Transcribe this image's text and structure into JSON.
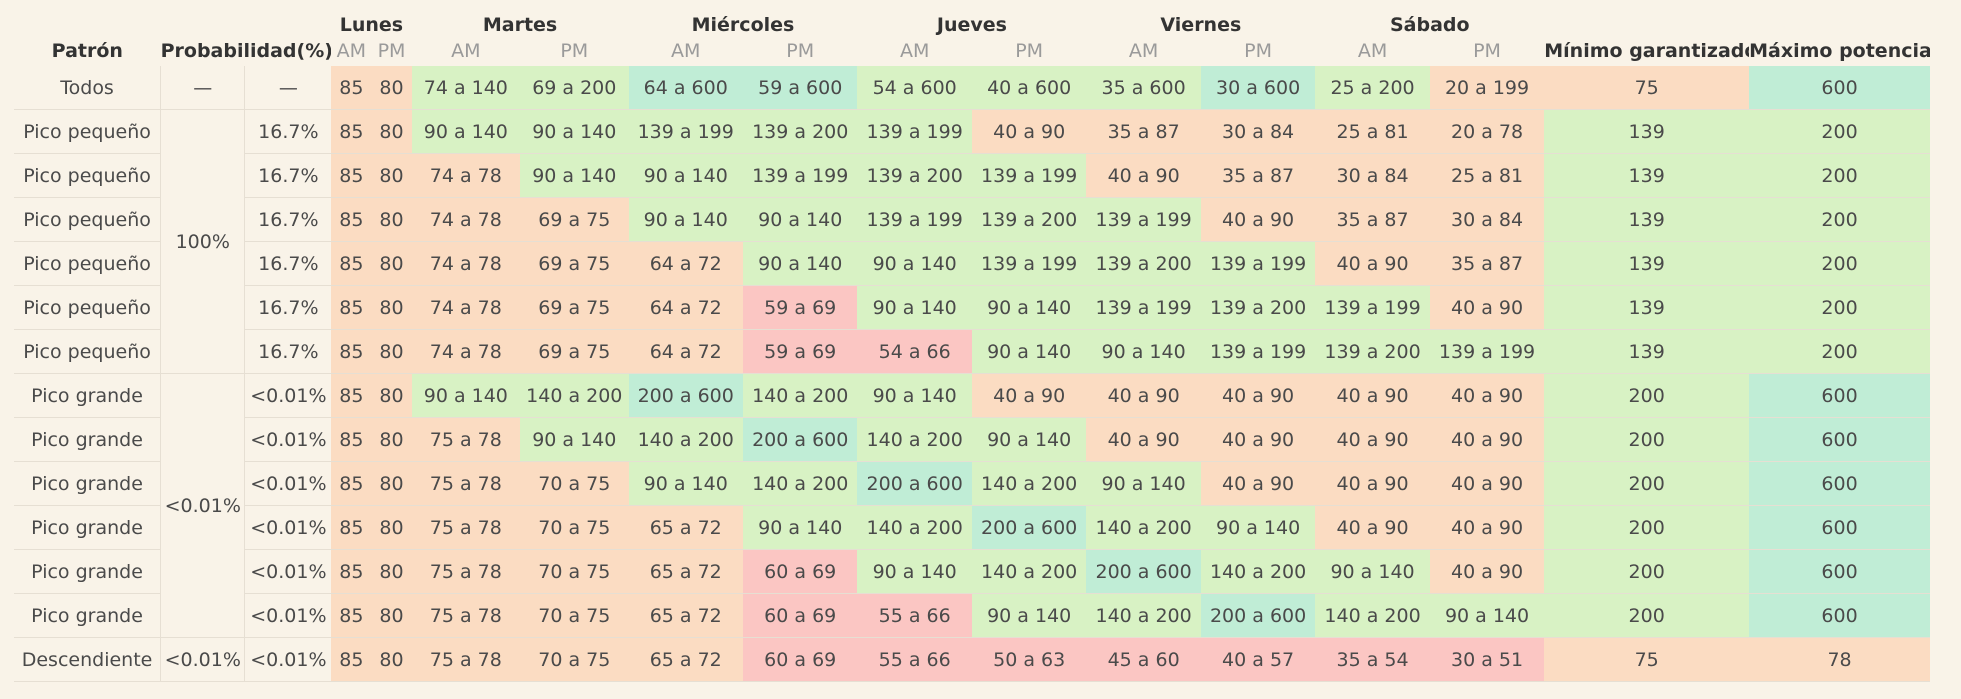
{
  "headers": {
    "pattern": "Patrón",
    "probability": "Probabilidad(%)",
    "days": [
      "Lunes",
      "Martes",
      "Miércoles",
      "Jueves",
      "Viernes",
      "Sábado"
    ],
    "am": "AM",
    "pm": "PM",
    "min_guaranteed": "Mínimo garantizado",
    "max_potential": "Máximo potencial"
  },
  "colors": {
    "o": "#fbdcc2",
    "g": "#d8f2c4",
    "t": "#c0edd6",
    "r": "#fbc6c3",
    "background": "#f9f3e8"
  },
  "rows": [
    {
      "pattern": "Todos",
      "prob": "—",
      "cells": [
        "85",
        "80",
        "74 a 140",
        "69 a 200",
        "64 a 600",
        "59 a 600",
        "54 a 600",
        "40 a 600",
        "35 a 600",
        "30 a 600",
        "25 a 200",
        "20 a 199",
        "75",
        "600"
      ],
      "colors": [
        "o",
        "o",
        "g",
        "g",
        "t",
        "t",
        "g",
        "g",
        "g",
        "t",
        "g",
        "o",
        "o",
        "t"
      ]
    },
    {
      "pattern": "Pico pequeño",
      "prob": "16.7%",
      "cells": [
        "85",
        "80",
        "90 a 140",
        "90 a 140",
        "139 a 199",
        "139 a 200",
        "139 a 199",
        "40 a 90",
        "35 a 87",
        "30 a 84",
        "25 a 81",
        "20 a 78",
        "139",
        "200"
      ],
      "colors": [
        "o",
        "o",
        "g",
        "g",
        "g",
        "g",
        "g",
        "o",
        "o",
        "o",
        "o",
        "o",
        "g",
        "g"
      ]
    },
    {
      "pattern": "Pico pequeño",
      "prob": "16.7%",
      "cells": [
        "85",
        "80",
        "74 a 78",
        "90 a 140",
        "90 a 140",
        "139 a 199",
        "139 a 200",
        "139 a 199",
        "40 a 90",
        "35 a 87",
        "30 a 84",
        "25 a 81",
        "139",
        "200"
      ],
      "colors": [
        "o",
        "o",
        "o",
        "g",
        "g",
        "g",
        "g",
        "g",
        "o",
        "o",
        "o",
        "o",
        "g",
        "g"
      ]
    },
    {
      "pattern": "Pico pequeño",
      "prob": "16.7%",
      "cells": [
        "85",
        "80",
        "74 a 78",
        "69 a 75",
        "90 a 140",
        "90 a 140",
        "139 a 199",
        "139 a 200",
        "139 a 199",
        "40 a 90",
        "35 a 87",
        "30 a 84",
        "139",
        "200"
      ],
      "colors": [
        "o",
        "o",
        "o",
        "o",
        "g",
        "g",
        "g",
        "g",
        "g",
        "o",
        "o",
        "o",
        "g",
        "g"
      ]
    },
    {
      "pattern": "Pico pequeño",
      "prob": "16.7%",
      "cells": [
        "85",
        "80",
        "74 a 78",
        "69 a 75",
        "64 a 72",
        "90 a 140",
        "90 a 140",
        "139 a 199",
        "139 a 200",
        "139 a 199",
        "40 a 90",
        "35 a 87",
        "139",
        "200"
      ],
      "colors": [
        "o",
        "o",
        "o",
        "o",
        "o",
        "g",
        "g",
        "g",
        "g",
        "g",
        "o",
        "o",
        "g",
        "g"
      ]
    },
    {
      "pattern": "Pico pequeño",
      "prob": "16.7%",
      "cells": [
        "85",
        "80",
        "74 a 78",
        "69 a 75",
        "64 a 72",
        "59 a 69",
        "90 a 140",
        "90 a 140",
        "139 a 199",
        "139 a 200",
        "139 a 199",
        "40 a 90",
        "139",
        "200"
      ],
      "colors": [
        "o",
        "o",
        "o",
        "o",
        "o",
        "r",
        "g",
        "g",
        "g",
        "g",
        "g",
        "o",
        "g",
        "g"
      ]
    },
    {
      "pattern": "Pico pequeño",
      "prob": "16.7%",
      "cells": [
        "85",
        "80",
        "74 a 78",
        "69 a 75",
        "64 a 72",
        "59 a 69",
        "54 a 66",
        "90 a 140",
        "90 a 140",
        "139 a 199",
        "139 a 200",
        "139 a 199",
        "139",
        "200"
      ],
      "colors": [
        "o",
        "o",
        "o",
        "o",
        "o",
        "r",
        "r",
        "g",
        "g",
        "g",
        "g",
        "g",
        "g",
        "g"
      ]
    },
    {
      "pattern": "Pico grande",
      "prob": "<0.01%",
      "cells": [
        "85",
        "80",
        "90 a 140",
        "140 a 200",
        "200 a 600",
        "140 a 200",
        "90 a 140",
        "40 a 90",
        "40 a 90",
        "40 a 90",
        "40 a 90",
        "40 a 90",
        "200",
        "600"
      ],
      "colors": [
        "o",
        "o",
        "g",
        "g",
        "t",
        "g",
        "g",
        "o",
        "o",
        "o",
        "o",
        "o",
        "g",
        "t"
      ]
    },
    {
      "pattern": "Pico grande",
      "prob": "<0.01%",
      "cells": [
        "85",
        "80",
        "75 a 78",
        "90 a 140",
        "140 a 200",
        "200 a 600",
        "140 a 200",
        "90 a 140",
        "40 a 90",
        "40 a 90",
        "40 a 90",
        "40 a 90",
        "200",
        "600"
      ],
      "colors": [
        "o",
        "o",
        "o",
        "g",
        "g",
        "t",
        "g",
        "g",
        "o",
        "o",
        "o",
        "o",
        "g",
        "t"
      ]
    },
    {
      "pattern": "Pico grande",
      "prob": "<0.01%",
      "cells": [
        "85",
        "80",
        "75 a 78",
        "70 a 75",
        "90 a 140",
        "140 a 200",
        "200 a 600",
        "140 a 200",
        "90 a 140",
        "40 a 90",
        "40 a 90",
        "40 a 90",
        "200",
        "600"
      ],
      "colors": [
        "o",
        "o",
        "o",
        "o",
        "g",
        "g",
        "t",
        "g",
        "g",
        "o",
        "o",
        "o",
        "g",
        "t"
      ]
    },
    {
      "pattern": "Pico grande",
      "prob": "<0.01%",
      "cells": [
        "85",
        "80",
        "75 a 78",
        "70 a 75",
        "65 a 72",
        "90 a 140",
        "140 a 200",
        "200 a 600",
        "140 a 200",
        "90 a 140",
        "40 a 90",
        "40 a 90",
        "200",
        "600"
      ],
      "colors": [
        "o",
        "o",
        "o",
        "o",
        "o",
        "g",
        "g",
        "t",
        "g",
        "g",
        "o",
        "o",
        "g",
        "t"
      ]
    },
    {
      "pattern": "Pico grande",
      "prob": "<0.01%",
      "cells": [
        "85",
        "80",
        "75 a 78",
        "70 a 75",
        "65 a 72",
        "60 a 69",
        "90 a 140",
        "140 a 200",
        "200 a 600",
        "140 a 200",
        "90 a 140",
        "40 a 90",
        "200",
        "600"
      ],
      "colors": [
        "o",
        "o",
        "o",
        "o",
        "o",
        "r",
        "g",
        "g",
        "t",
        "g",
        "g",
        "o",
        "g",
        "t"
      ]
    },
    {
      "pattern": "Pico grande",
      "prob": "<0.01%",
      "cells": [
        "85",
        "80",
        "75 a 78",
        "70 a 75",
        "65 a 72",
        "60 a 69",
        "55 a 66",
        "90 a 140",
        "140 a 200",
        "200 a 600",
        "140 a 200",
        "90 a 140",
        "200",
        "600"
      ],
      "colors": [
        "o",
        "o",
        "o",
        "o",
        "o",
        "r",
        "r",
        "g",
        "g",
        "t",
        "g",
        "g",
        "g",
        "t"
      ]
    },
    {
      "pattern": "Descendiente",
      "prob": "<0.01%",
      "cells": [
        "85",
        "80",
        "75 a 78",
        "70 a 75",
        "65 a 72",
        "60 a 69",
        "55 a 66",
        "50 a 63",
        "45 a 60",
        "40 a 57",
        "35 a 54",
        "30 a 51",
        "75",
        "78"
      ],
      "colors": [
        "o",
        "o",
        "o",
        "o",
        "o",
        "r",
        "r",
        "r",
        "r",
        "r",
        "r",
        "r",
        "o",
        "o"
      ]
    }
  ],
  "groups": {
    "todos": {
      "label1": "—"
    },
    "small": {
      "label": "100%"
    },
    "large": {
      "label": "<0.01%"
    },
    "dec": {
      "label": "<0.01%"
    }
  }
}
